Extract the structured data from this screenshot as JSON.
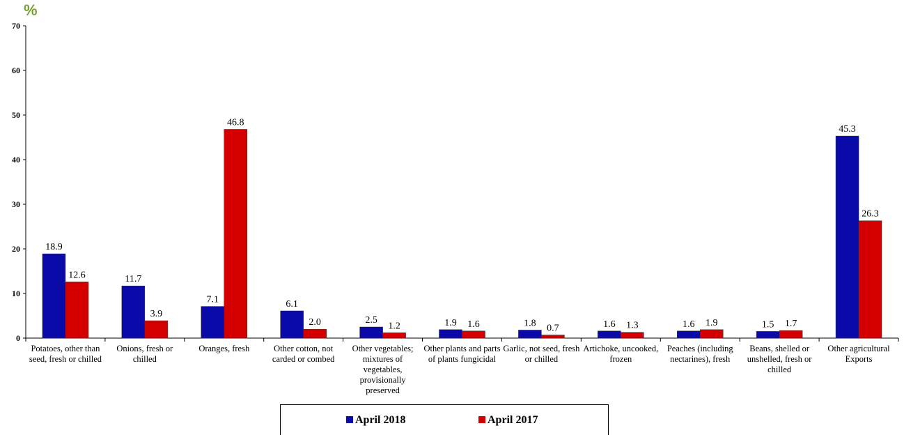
{
  "chart_data": {
    "type": "bar",
    "ylabel": "%",
    "ylim": [
      0,
      70
    ],
    "yticks": [
      0,
      10,
      20,
      30,
      40,
      50,
      60,
      70
    ],
    "grid": false,
    "legend_position": "bottom",
    "categories": [
      "Potatoes, other than seed, fresh or chilled",
      "Onions, fresh or chilled",
      "Oranges, fresh",
      "Other cotton, not carded or combed",
      "Other vegetables; mixtures of vegetables, provisionally preserved",
      "Other plants and parts of plants fungicidal",
      "Garlic, not seed, fresh or chilled",
      "Artichoke, uncooked, frozen",
      "Peaches (including nectarines), fresh",
      "Beans, shelled or unshelled, fresh or chilled",
      "Other agricultural Exports"
    ],
    "series": [
      {
        "name": "April 2018",
        "color": "#0a0aa8",
        "values": [
          18.9,
          11.7,
          7.1,
          6.1,
          2.5,
          1.9,
          1.8,
          1.6,
          1.6,
          1.5,
          45.3
        ],
        "labels": [
          "18.9",
          "11.7",
          "7.1",
          "6.1",
          "2.5",
          "1.9",
          "1.8",
          "1.6",
          "1.6",
          "1.5",
          "45.3"
        ]
      },
      {
        "name": "April  2017",
        "color": "#d40000",
        "values": [
          12.6,
          3.9,
          46.8,
          2.0,
          1.2,
          1.6,
          0.7,
          1.3,
          1.9,
          1.7,
          26.3
        ],
        "labels": [
          "12.6",
          "3.9",
          "46.8",
          "2.0",
          "1.2",
          "1.6",
          "0.7",
          "1.3",
          "1.9",
          "1.7",
          "26.3"
        ]
      }
    ]
  }
}
